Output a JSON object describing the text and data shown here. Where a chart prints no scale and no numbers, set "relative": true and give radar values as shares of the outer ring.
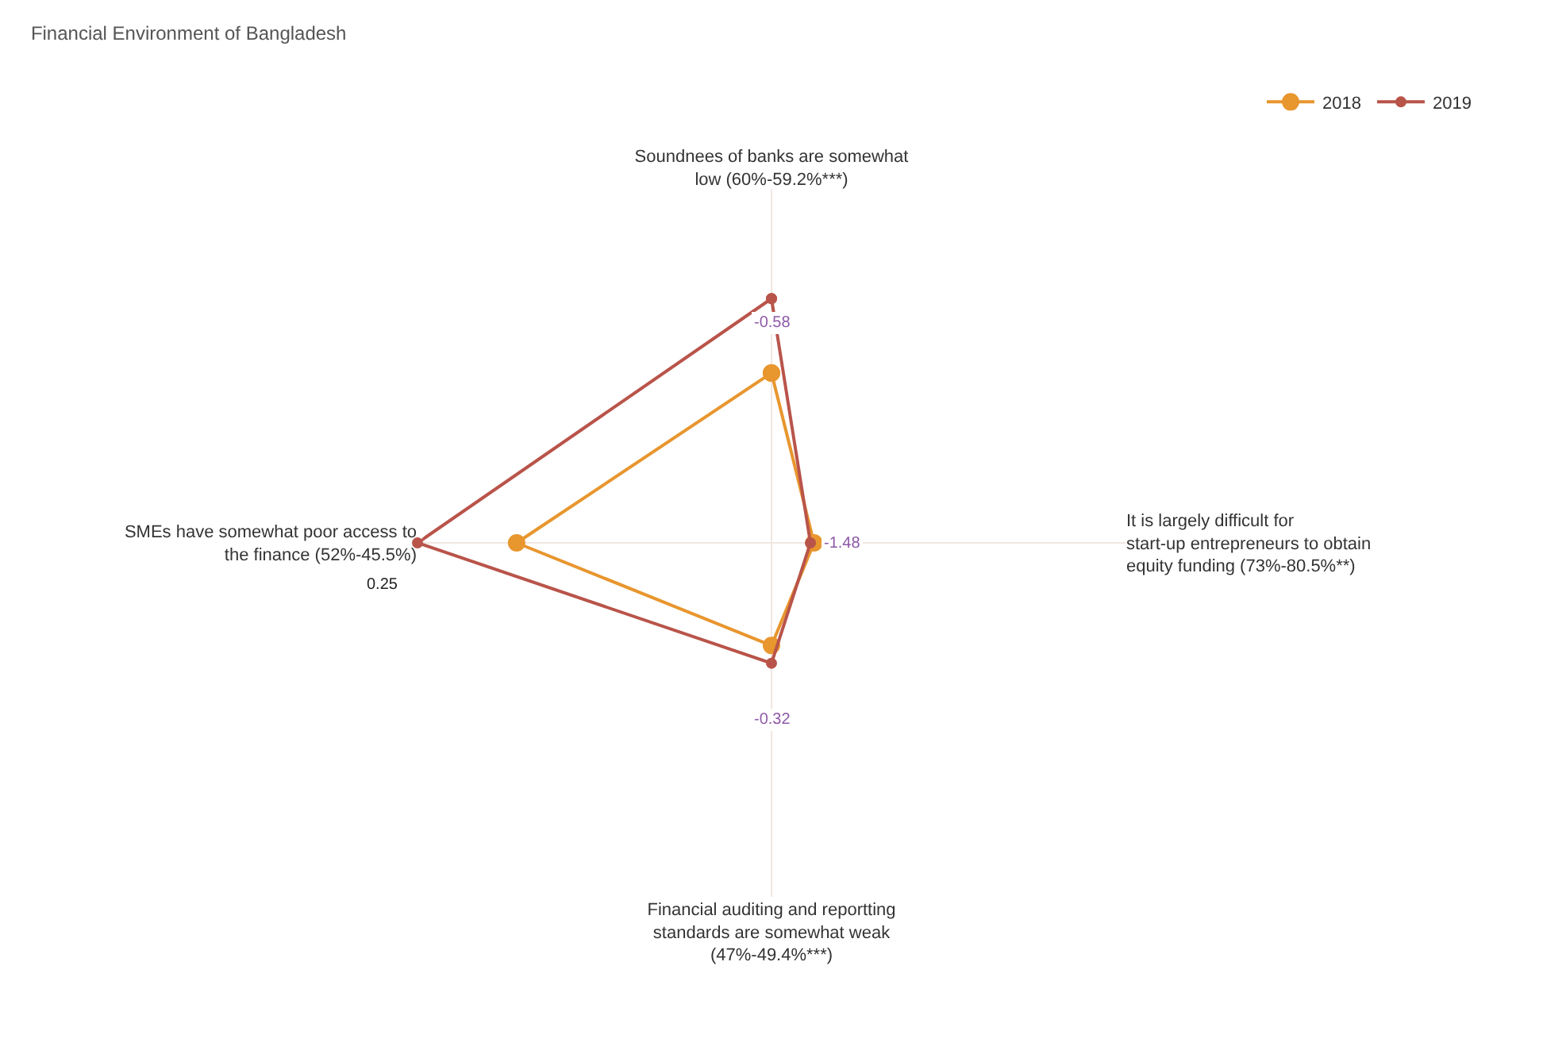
{
  "chart_data": {
    "type": "radar",
    "title": "Financial Environment of Bangladesh",
    "relative": true,
    "grid": true,
    "legend": "top right",
    "marker": "circle",
    "line_style": "solid",
    "categories": [
      "Soundnees of banks are somewhat low (60%-59.2%***)",
      "It is largely difficult for start-up entrepreneurs to obtain equity funding (73%-80.5%**)",
      "Financial auditing and reportting standards are somewhat weak (47%-49.4%***)",
      "SMEs have somewhat poor access to the finance (52%-45.5%)"
    ],
    "series": [
      {
        "name": "2018",
        "color": "#e8962e",
        "values": [
          0.48,
          0.12,
          0.29,
          0.72
        ]
      },
      {
        "name": "2019",
        "color": "#b9544a",
        "values": [
          0.69,
          0.11,
          0.34,
          1
        ]
      }
    ],
    "annotations": [
      "-0.58",
      "-1.48",
      "-0.32",
      "0.25"
    ]
  }
}
